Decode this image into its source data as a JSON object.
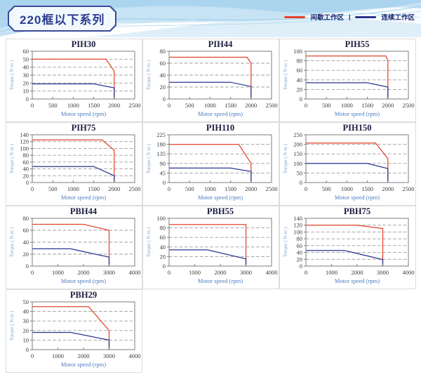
{
  "page": {
    "title": "220框以下系列",
    "legend": {
      "position": "top-right",
      "separator": "|",
      "items": [
        {
          "label": "间歇工作区",
          "color": "#e2442b"
        },
        {
          "label": "连续工作区",
          "color": "#2a3590"
        }
      ]
    }
  },
  "chart_data": [
    {
      "type": "line",
      "title": "PIH30",
      "xlabel": "Motor speed (rpm)",
      "ylabel": "Torque ( N·m )",
      "xlim": [
        0,
        2500
      ],
      "xticks": [
        0,
        500,
        1000,
        1500,
        2000,
        2500
      ],
      "ylim": [
        0,
        60
      ],
      "yticks": [
        0,
        10,
        20,
        30,
        40,
        50,
        60
      ],
      "grid": "dashed-horizontal",
      "series": [
        {
          "name": "间歇工作区",
          "color": "#e2442b",
          "points": [
            [
              0,
              50
            ],
            [
              1800,
              50
            ],
            [
              2000,
              35
            ],
            [
              2000,
              0
            ]
          ]
        },
        {
          "name": "连续工作区",
          "color": "#2a3590",
          "points": [
            [
              0,
              19
            ],
            [
              1500,
              19
            ],
            [
              2000,
              14
            ],
            [
              2000,
              0
            ]
          ]
        }
      ]
    },
    {
      "type": "line",
      "title": "PIH44",
      "xlabel": "Motor speed (rpm)",
      "ylabel": "Torque ( N·m )",
      "xlim": [
        0,
        2500
      ],
      "xticks": [
        0,
        500,
        1000,
        1500,
        2000,
        2500
      ],
      "ylim": [
        0,
        80
      ],
      "yticks": [
        0,
        20,
        40,
        60,
        80
      ],
      "grid": "dashed-horizontal",
      "series": [
        {
          "name": "间歇工作区",
          "color": "#e2442b",
          "points": [
            [
              0,
              70
            ],
            [
              1900,
              70
            ],
            [
              2000,
              60
            ],
            [
              2000,
              0
            ]
          ]
        },
        {
          "name": "连续工作区",
          "color": "#2a3590",
          "points": [
            [
              0,
              28
            ],
            [
              1500,
              28
            ],
            [
              2000,
              21
            ],
            [
              2000,
              0
            ]
          ]
        }
      ]
    },
    {
      "type": "line",
      "title": "PIH55",
      "xlabel": "Motor speed (rpm)",
      "ylabel": "Torque ( N·m )",
      "xlim": [
        0,
        2500
      ],
      "xticks": [
        0,
        500,
        1000,
        1500,
        2000,
        2500
      ],
      "ylim": [
        0,
        100
      ],
      "yticks": [
        0,
        20,
        40,
        60,
        80,
        100
      ],
      "grid": "dashed-horizontal",
      "series": [
        {
          "name": "间歇工作区",
          "color": "#e2442b",
          "points": [
            [
              0,
              90
            ],
            [
              1950,
              90
            ],
            [
              2000,
              80
            ],
            [
              2000,
              0
            ]
          ]
        },
        {
          "name": "连续工作区",
          "color": "#2a3590",
          "points": [
            [
              0,
              34
            ],
            [
              1500,
              34
            ],
            [
              2000,
              25
            ],
            [
              2000,
              0
            ]
          ]
        }
      ]
    },
    {
      "type": "line",
      "title": "PIH75",
      "xlabel": "Motor speed (rpm)",
      "ylabel": "Torque ( N·m )",
      "xlim": [
        0,
        2500
      ],
      "xticks": [
        0,
        500,
        1000,
        1500,
        2000,
        2500
      ],
      "ylim": [
        0,
        140
      ],
      "yticks": [
        0,
        20,
        40,
        60,
        80,
        100,
        120,
        140
      ],
      "grid": "dashed-horizontal",
      "series": [
        {
          "name": "间歇工作区",
          "color": "#e2442b",
          "points": [
            [
              0,
              125
            ],
            [
              1700,
              125
            ],
            [
              2000,
              95
            ],
            [
              2000,
              0
            ]
          ]
        },
        {
          "name": "连续工作区",
          "color": "#2a3590",
          "points": [
            [
              0,
              47
            ],
            [
              1500,
              47
            ],
            [
              2000,
              20
            ],
            [
              2000,
              0
            ]
          ]
        }
      ]
    },
    {
      "type": "line",
      "title": "PIH110",
      "xlabel": "Motor speed (rpm)",
      "ylabel": "Torque ( N·m )",
      "xlim": [
        0,
        2500
      ],
      "xticks": [
        0,
        500,
        1000,
        1500,
        2000,
        2500
      ],
      "ylim": [
        0,
        225
      ],
      "yticks": [
        0,
        45,
        90,
        135,
        180,
        225
      ],
      "grid": "dashed-horizontal",
      "series": [
        {
          "name": "间歇工作区",
          "color": "#e2442b",
          "points": [
            [
              0,
              180
            ],
            [
              1700,
              180
            ],
            [
              2000,
              90
            ],
            [
              2000,
              0
            ]
          ]
        },
        {
          "name": "连续工作区",
          "color": "#2a3590",
          "points": [
            [
              0,
              68
            ],
            [
              1500,
              68
            ],
            [
              2000,
              52
            ],
            [
              2000,
              0
            ]
          ]
        }
      ]
    },
    {
      "type": "line",
      "title": "PIH150",
      "xlabel": "Motor speed (rpm)",
      "ylabel": "Torque ( N·m )",
      "xlim": [
        0,
        2500
      ],
      "xticks": [
        0,
        500,
        1000,
        1500,
        2000,
        2500
      ],
      "ylim": [
        0,
        250
      ],
      "yticks": [
        0,
        50,
        100,
        150,
        200,
        250
      ],
      "grid": "dashed-horizontal",
      "series": [
        {
          "name": "间歇工作区",
          "color": "#e2442b",
          "points": [
            [
              0,
              207
            ],
            [
              1700,
              207
            ],
            [
              2000,
              125
            ],
            [
              2000,
              0
            ]
          ]
        },
        {
          "name": "连续工作区",
          "color": "#2a3590",
          "points": [
            [
              0,
              100
            ],
            [
              1500,
              100
            ],
            [
              2000,
              73
            ],
            [
              2000,
              0
            ]
          ]
        }
      ]
    },
    {
      "type": "line",
      "title": "PBH44",
      "xlabel": "Motor speed (rpm)",
      "ylabel": "Torque ( N·m )",
      "xlim": [
        0,
        4000
      ],
      "xticks": [
        0,
        1000,
        2000,
        3000,
        4000
      ],
      "ylim": [
        0,
        80
      ],
      "yticks": [
        0,
        20,
        40,
        60,
        80
      ],
      "grid": "dashed-horizontal",
      "series": [
        {
          "name": "间歇工作区",
          "color": "#e2442b",
          "points": [
            [
              0,
              70
            ],
            [
              2000,
              70
            ],
            [
              3000,
              60
            ],
            [
              3000,
              0
            ]
          ]
        },
        {
          "name": "连续工作区",
          "color": "#2a3590",
          "points": [
            [
              0,
              29
            ],
            [
              1500,
              29
            ],
            [
              3000,
              15
            ],
            [
              3000,
              0
            ]
          ]
        }
      ]
    },
    {
      "type": "line",
      "title": "PBH55",
      "xlabel": "Motor speed (rpm)",
      "ylabel": "Torque ( N·m )",
      "xlim": [
        0,
        4000
      ],
      "xticks": [
        0,
        1000,
        2000,
        3000,
        4000
      ],
      "ylim": [
        0,
        100
      ],
      "yticks": [
        0,
        20,
        40,
        60,
        80,
        100
      ],
      "grid": "dashed-horizontal",
      "series": [
        {
          "name": "间歇工作区",
          "color": "#e2442b",
          "points": [
            [
              0,
              87
            ],
            [
              3000,
              87
            ],
            [
              3000,
              0
            ]
          ]
        },
        {
          "name": "连续工作区",
          "color": "#2a3590",
          "points": [
            [
              0,
              34
            ],
            [
              1500,
              34
            ],
            [
              3000,
              15
            ],
            [
              3000,
              0
            ]
          ]
        }
      ]
    },
    {
      "type": "line",
      "title": "PBH75",
      "xlabel": "Motor speed (rpm)",
      "ylabel": "Torque ( N·m )",
      "xlim": [
        0,
        4000
      ],
      "xticks": [
        0,
        1000,
        2000,
        3000,
        4000
      ],
      "ylim": [
        0,
        140
      ],
      "yticks": [
        0,
        20,
        40,
        60,
        80,
        100,
        120,
        140
      ],
      "grid": "dashed-horizontal",
      "series": [
        {
          "name": "间歇工作区",
          "color": "#e2442b",
          "points": [
            [
              0,
              120
            ],
            [
              2000,
              120
            ],
            [
              3000,
              110
            ],
            [
              3000,
              0
            ]
          ]
        },
        {
          "name": "连续工作区",
          "color": "#2a3590",
          "points": [
            [
              0,
              46
            ],
            [
              1500,
              46
            ],
            [
              3000,
              19
            ],
            [
              3000,
              0
            ]
          ]
        }
      ]
    },
    {
      "type": "line",
      "title": "PBH29",
      "xlabel": "Motor speed (rpm)",
      "ylabel": "Torque ( N·m )",
      "xlim": [
        0,
        4000
      ],
      "xticks": [
        0,
        1000,
        2000,
        3000,
        4000
      ],
      "ylim": [
        0,
        50
      ],
      "yticks": [
        0,
        10,
        20,
        30,
        40,
        50
      ],
      "grid": "dashed-horizontal",
      "series": [
        {
          "name": "间歇工作区",
          "color": "#e2442b",
          "points": [
            [
              0,
              45
            ],
            [
              2200,
              45
            ],
            [
              3000,
              20
            ],
            [
              3000,
              0
            ]
          ]
        },
        {
          "name": "连续工作区",
          "color": "#2a3590",
          "points": [
            [
              0,
              18
            ],
            [
              1500,
              18
            ],
            [
              3000,
              10
            ],
            [
              3000,
              0
            ]
          ]
        }
      ]
    }
  ]
}
